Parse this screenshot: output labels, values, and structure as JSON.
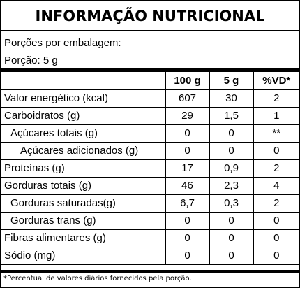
{
  "title": "INFORMAÇÃO NUTRICIONAL",
  "servings_per_package": "Porções por embalagem:",
  "serving_size": "Porção: 5 g",
  "columns": [
    "100 g",
    "5 g",
    "%VD*"
  ],
  "rows": [
    {
      "name": "Valor energético (kcal)",
      "v100": "607",
      "v5": "30",
      "vd": "2"
    },
    {
      "name": "Carboidratos (g)",
      "v100": "29",
      "v5": "1,5",
      "vd": "1"
    },
    {
      "name": "Açúcares totais (g)",
      "v100": "0",
      "v5": "0",
      "vd": "**"
    },
    {
      "name": "Açúcares adicionados (g)",
      "v100": "0",
      "v5": "0",
      "vd": "0"
    },
    {
      "name": "Proteínas (g)",
      "v100": "17",
      "v5": "0,9",
      "vd": "2"
    },
    {
      "name": "Gorduras totais (g)",
      "v100": "46",
      "v5": "2,3",
      "vd": "4"
    },
    {
      "name": "Gorduras saturadas(g)",
      "v100": "6,7",
      "v5": "0,3",
      "vd": "2"
    },
    {
      "name": "Gorduras trans (g)",
      "v100": "0",
      "v5": "0",
      "vd": "0"
    },
    {
      "name": "Fibras alimentares (g)",
      "v100": "0",
      "v5": "0",
      "vd": "0"
    },
    {
      "name": "Sódio (mg)",
      "v100": "0",
      "v5": "0",
      "vd": "0"
    }
  ],
  "footnote": "*Percentual de valores diários fornecidos pela porção."
}
